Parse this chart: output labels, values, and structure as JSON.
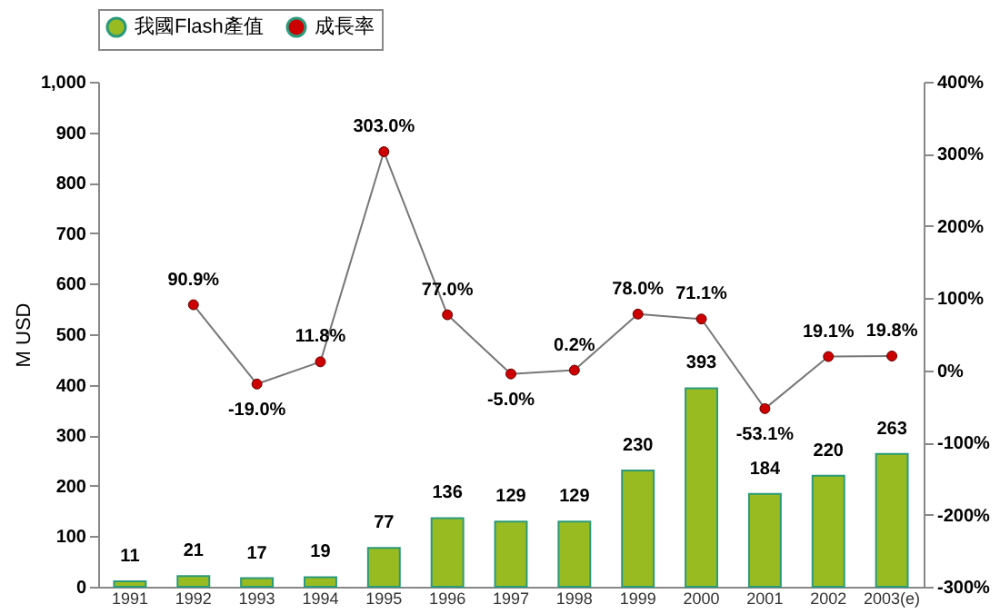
{
  "chart_data": {
    "type": "line",
    "ylabel": "M USD",
    "categories": [
      "1991",
      "1992",
      "1993",
      "1994",
      "1995",
      "1996",
      "1997",
      "1998",
      "1999",
      "2000",
      "2001",
      "2002",
      "2003(e)"
    ],
    "series": [
      {
        "name": "我國Flash產值",
        "type": "bar",
        "color": "#99bb22",
        "values": [
          11,
          21,
          17,
          19,
          77,
          136,
          129,
          129,
          230,
          393,
          184,
          220,
          263
        ],
        "value_labels": [
          "11",
          "21",
          "17",
          "19",
          "77",
          "136",
          "129",
          "129",
          "230",
          "393",
          "184",
          "220",
          "263"
        ]
      },
      {
        "name": "成長率",
        "axis": "y2",
        "color": "#cc0000",
        "values": [
          null,
          90.9,
          -19.0,
          11.8,
          303.0,
          77.0,
          -5.0,
          0.2,
          78.0,
          71.1,
          -53.1,
          19.1,
          19.8
        ],
        "value_labels": [
          null,
          "90.9%",
          "-19.0%",
          "11.8%",
          "303.0%",
          "77.0%",
          "-5.0%",
          "0.2%",
          "78.0%",
          "71.1%",
          "-53.1%",
          "19.1%",
          "19.8%"
        ]
      }
    ],
    "ylim": [
      0,
      1000
    ],
    "yticks": [
      0,
      100,
      200,
      300,
      400,
      500,
      600,
      700,
      800,
      900,
      {
        "value": 1000,
        "label": "1,000"
      }
    ],
    "y2lim": [
      -300,
      400
    ],
    "y2ticks": [
      {
        "value": -300,
        "label": "-300%"
      },
      {
        "value": -200,
        "label": "-200%"
      },
      {
        "value": -100,
        "label": "-100%"
      },
      {
        "value": 0,
        "label": "0%"
      },
      {
        "value": 100,
        "label": "100%"
      },
      {
        "value": 200,
        "label": "200%"
      },
      {
        "value": 300,
        "label": "300%"
      },
      {
        "value": 400,
        "label": "400%"
      }
    ],
    "marker": "circle",
    "legend": "top",
    "grid": false
  }
}
